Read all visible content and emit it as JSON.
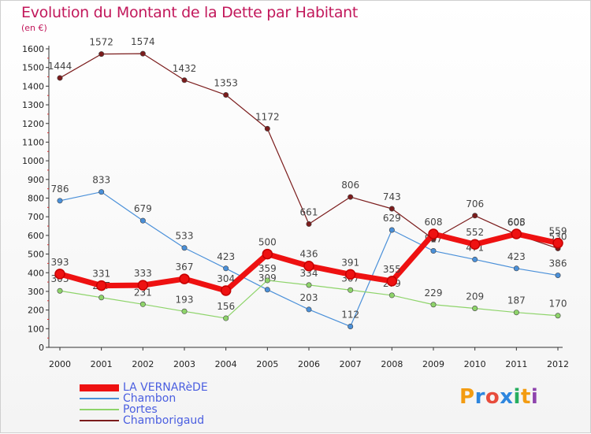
{
  "title": "Evolution du Montant de la Dette par Habitant",
  "unit": "(en €)",
  "brand": {
    "letters": [
      "P",
      "r",
      "o",
      "x",
      "i",
      "t",
      "i"
    ],
    "colors": [
      "#f39c12",
      "#2e86de",
      "#e74c3c",
      "#2e86de",
      "#27ae60",
      "#f39c12",
      "#8e44ad"
    ]
  },
  "chart_data": {
    "type": "line",
    "title": "Evolution du Montant de la Dette par Habitant",
    "ylabel": "(en €)",
    "xlabel": "",
    "categories": [
      "2000",
      "2001",
      "2002",
      "2003",
      "2004",
      "2005",
      "2006",
      "2007",
      "2008",
      "2009",
      "2010",
      "2011",
      "2012"
    ],
    "ylim": [
      0,
      1600
    ],
    "yticks": [
      0,
      100,
      200,
      300,
      400,
      500,
      600,
      700,
      800,
      900,
      1000,
      1100,
      1200,
      1300,
      1400,
      1500,
      1600
    ],
    "grid": false,
    "legend_position": "bottom-left",
    "series": [
      {
        "name": "Chamborigaud",
        "color": "#7b1c1c",
        "width": 1.2,
        "values": [
          1444,
          1572,
          1574,
          1432,
          1353,
          1172,
          661,
          806,
          743,
          580,
          706,
          605,
          530
        ],
        "labels": [
          "1444",
          "1572",
          "1574",
          "1432",
          "1353",
          "1172",
          "661",
          "806",
          "743",
          "",
          "706",
          "605",
          "530"
        ]
      },
      {
        "name": "Chambon",
        "color": "#4a90d9",
        "width": 1.2,
        "values": [
          786,
          833,
          679,
          533,
          423,
          309,
          203,
          112,
          629,
          517,
          471,
          423,
          386
        ],
        "labels": [
          "786",
          "833",
          "679",
          "533",
          "423",
          "309",
          "203",
          "112",
          "629",
          "517",
          "471",
          "423",
          "386"
        ]
      },
      {
        "name": "Portes",
        "color": "#8ed46a",
        "width": 1.2,
        "values": [
          303,
          267,
          231,
          193,
          156,
          359,
          334,
          307,
          279,
          229,
          209,
          187,
          170
        ],
        "labels": [
          "303",
          "267",
          "231",
          "193",
          "156",
          "359",
          "334",
          "307",
          "279",
          "229",
          "209",
          "187",
          "170"
        ]
      },
      {
        "name": "LA VERNARèDE",
        "color": "#ee1111",
        "width": 7,
        "values": [
          393,
          331,
          333,
          367,
          304,
          500,
          436,
          391,
          355,
          608,
          552,
          608,
          559
        ],
        "labels": [
          "393",
          "331",
          "333",
          "367",
          "304",
          "500",
          "436",
          "391",
          "355",
          "608",
          "552",
          "608",
          "559"
        ]
      }
    ]
  }
}
